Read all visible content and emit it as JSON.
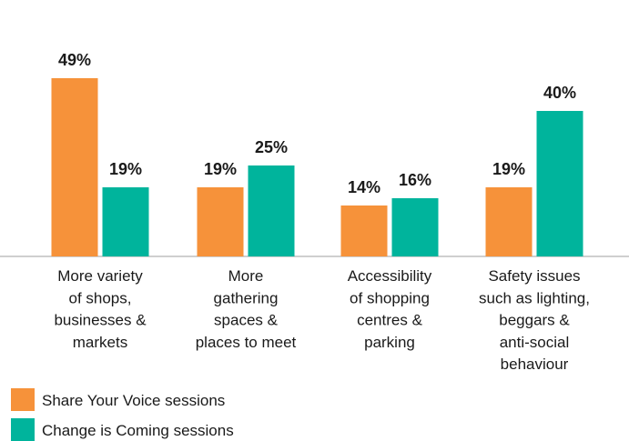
{
  "chart_data": {
    "type": "bar",
    "categories": [
      [
        "More variety",
        "of shops,",
        "businesses &",
        "markets"
      ],
      [
        "More",
        "gathering",
        "spaces &",
        "places to meet"
      ],
      [
        "Accessibility",
        "of shopping",
        "centres &",
        "parking"
      ],
      [
        "Safety issues",
        "such as lighting,",
        "beggars &",
        "anti-social",
        "behaviour"
      ]
    ],
    "series": [
      {
        "name": "Share Your Voice sessions",
        "color": "#f6923a",
        "values": [
          49,
          19,
          14,
          19
        ],
        "value_labels": [
          "49%",
          "19%",
          "14%",
          "19%"
        ]
      },
      {
        "name": "Change is Coming sessions",
        "color": "#00b49c",
        "values": [
          19,
          25,
          16,
          40
        ],
        "value_labels": [
          "19%",
          "25%",
          "16%",
          "40%"
        ]
      }
    ],
    "ylim": [
      0,
      52.5
    ]
  }
}
